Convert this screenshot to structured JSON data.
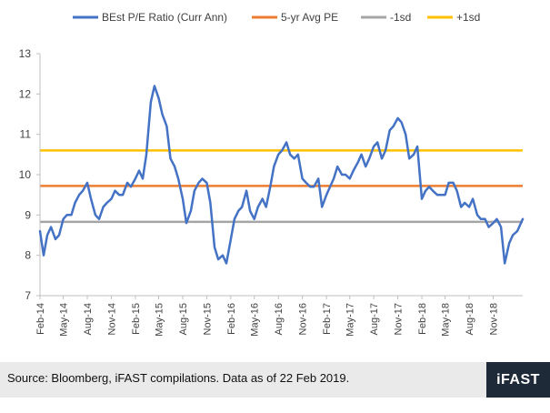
{
  "chart_data": {
    "type": "line",
    "legend_position": "top",
    "grid": false,
    "ylim": [
      7,
      13
    ],
    "y_ticks": [
      "7",
      "8",
      "9",
      "10",
      "11",
      "12",
      "13"
    ],
    "x_tick_labels": [
      "Feb-14",
      "May-14",
      "Aug-14",
      "Nov-14",
      "Feb-15",
      "May-15",
      "Aug-15",
      "Nov-15",
      "Feb-16",
      "May-16",
      "Aug-16",
      "Nov-16",
      "Feb-17",
      "May-17",
      "Aug-17",
      "Nov-17",
      "Feb-18",
      "May-18",
      "Aug-18",
      "Nov-18"
    ],
    "x_range": [
      "2014-02-01",
      "2019-02-22"
    ],
    "series": [
      {
        "name": "BEst P/E Ratio (Curr Ann)",
        "color": "#4472c4",
        "x": [
          "2014-02-01",
          "2014-02-15",
          "2014-03-01",
          "2014-03-15",
          "2014-04-01",
          "2014-04-15",
          "2014-05-01",
          "2014-05-15",
          "2014-06-01",
          "2014-06-15",
          "2014-07-01",
          "2014-07-15",
          "2014-08-01",
          "2014-08-15",
          "2014-09-01",
          "2014-09-15",
          "2014-10-01",
          "2014-10-15",
          "2014-11-01",
          "2014-11-15",
          "2014-12-01",
          "2014-12-15",
          "2015-01-01",
          "2015-01-15",
          "2015-02-01",
          "2015-02-15",
          "2015-03-01",
          "2015-03-15",
          "2015-04-01",
          "2015-04-15",
          "2015-05-01",
          "2015-05-15",
          "2015-06-01",
          "2015-06-15",
          "2015-07-01",
          "2015-07-15",
          "2015-08-01",
          "2015-08-15",
          "2015-09-01",
          "2015-09-15",
          "2015-10-01",
          "2015-10-15",
          "2015-11-01",
          "2015-11-15",
          "2015-12-01",
          "2015-12-15",
          "2016-01-01",
          "2016-01-15",
          "2016-02-01",
          "2016-02-15",
          "2016-03-01",
          "2016-03-15",
          "2016-04-01",
          "2016-04-15",
          "2016-05-01",
          "2016-05-15",
          "2016-06-01",
          "2016-06-15",
          "2016-07-01",
          "2016-07-15",
          "2016-08-01",
          "2016-08-15",
          "2016-09-01",
          "2016-09-15",
          "2016-10-01",
          "2016-10-15",
          "2016-11-01",
          "2016-11-15",
          "2016-12-01",
          "2016-12-15",
          "2017-01-01",
          "2017-01-15",
          "2017-02-01",
          "2017-02-15",
          "2017-03-01",
          "2017-03-15",
          "2017-04-01",
          "2017-04-15",
          "2017-05-01",
          "2017-05-15",
          "2017-06-01",
          "2017-06-15",
          "2017-07-01",
          "2017-07-15",
          "2017-08-01",
          "2017-08-15",
          "2017-09-01",
          "2017-09-15",
          "2017-10-01",
          "2017-10-15",
          "2017-11-01",
          "2017-11-15",
          "2017-12-01",
          "2017-12-15",
          "2018-01-01",
          "2018-01-15",
          "2018-02-01",
          "2018-02-15",
          "2018-03-01",
          "2018-03-15",
          "2018-04-01",
          "2018-04-15",
          "2018-05-01",
          "2018-05-15",
          "2018-06-01",
          "2018-06-15",
          "2018-07-01",
          "2018-07-15",
          "2018-08-01",
          "2018-08-15",
          "2018-09-01",
          "2018-09-15",
          "2018-10-01",
          "2018-10-15",
          "2018-11-01",
          "2018-11-15",
          "2018-12-01",
          "2018-12-15",
          "2019-01-01",
          "2019-01-15",
          "2019-02-01",
          "2019-02-22"
        ],
        "values": [
          8.6,
          8.0,
          8.5,
          8.7,
          8.4,
          8.5,
          8.9,
          9.0,
          9.0,
          9.3,
          9.5,
          9.6,
          9.8,
          9.4,
          9.0,
          8.9,
          9.2,
          9.3,
          9.4,
          9.6,
          9.5,
          9.5,
          9.8,
          9.7,
          9.9,
          10.1,
          9.9,
          10.5,
          11.8,
          12.2,
          11.9,
          11.5,
          11.2,
          10.4,
          10.2,
          9.9,
          9.4,
          8.8,
          9.1,
          9.6,
          9.8,
          9.9,
          9.8,
          9.3,
          8.2,
          7.9,
          8.0,
          7.8,
          8.4,
          8.9,
          9.1,
          9.2,
          9.6,
          9.1,
          8.9,
          9.2,
          9.4,
          9.2,
          9.7,
          10.2,
          10.5,
          10.6,
          10.8,
          10.5,
          10.4,
          10.5,
          9.9,
          9.8,
          9.7,
          9.7,
          9.9,
          9.2,
          9.5,
          9.7,
          9.9,
          10.2,
          10.0,
          10.0,
          9.9,
          10.1,
          10.3,
          10.5,
          10.2,
          10.4,
          10.7,
          10.8,
          10.4,
          10.6,
          11.1,
          11.2,
          11.4,
          11.3,
          11.0,
          10.4,
          10.5,
          10.7,
          9.4,
          9.6,
          9.7,
          9.6,
          9.5,
          9.5,
          9.5,
          9.8,
          9.8,
          9.6,
          9.2,
          9.3,
          9.2,
          9.4,
          9.0,
          8.9,
          8.9,
          8.7,
          8.8,
          8.9,
          8.7,
          7.8,
          8.3,
          8.5,
          8.6,
          8.9
        ]
      },
      {
        "name": "5-yr Avg PE",
        "color": "#ed7d31",
        "values": [
          9.72
        ]
      },
      {
        "name": "-1sd",
        "color": "#a5a5a5",
        "values": [
          8.83
        ]
      },
      {
        "name": "+1sd",
        "color": "#ffc000",
        "values": [
          10.6
        ]
      }
    ]
  },
  "footer": {
    "source": "Source: Bloomberg, iFAST compilations. Data as of 22 Feb 2019.",
    "brand": "iFAST"
  }
}
